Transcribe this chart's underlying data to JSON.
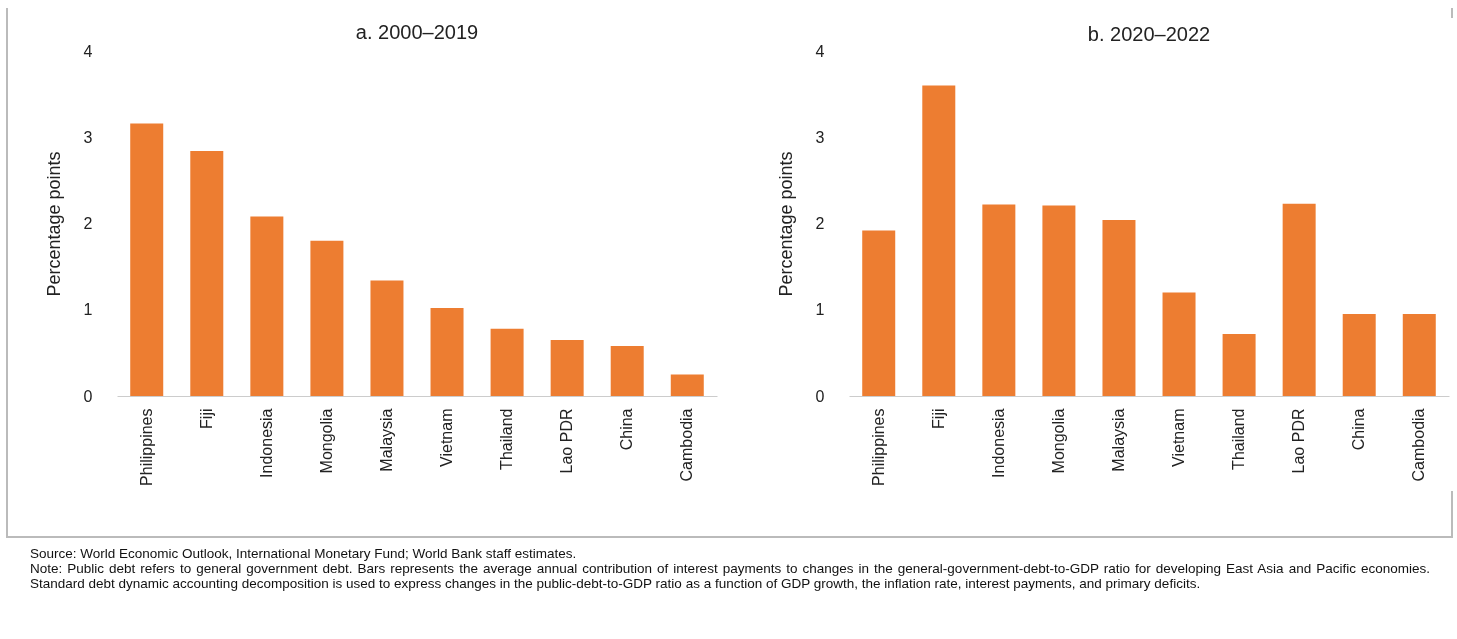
{
  "chart_data": [
    {
      "type": "bar",
      "title": "a. 2000–2019",
      "ylabel": "Percentage points",
      "categories": [
        "Philippines",
        "Fiji",
        "Indonesia",
        "Mongolia",
        "Malaysia",
        "Vietnam",
        "Thailand",
        "Lao PDR",
        "China",
        "Cambodia"
      ],
      "values": [
        3.16,
        2.84,
        2.08,
        1.8,
        1.34,
        1.02,
        0.78,
        0.65,
        0.58,
        0.25
      ],
      "color": "#ed7d31",
      "ylim": [
        0,
        4
      ],
      "yticks": [
        0,
        1,
        2,
        3,
        4
      ],
      "grid": false,
      "annotations": [
        "Source: World Economic Outlook, International Monetary Fund; World Bank staff estimates.",
        "Note: Public debt refers to general government debt. Bars represents the average annual contribution of interest payments to changes in the general-government-debt-to-GDP ratio for developing East Asia and Pacific economies. Standard debt dynamic accounting decomposition is used to express changes in the public-debt-to-GDP ratio as a function of GDP growth, the inflation rate, interest payments, and primary deficits."
      ]
    },
    {
      "type": "bar",
      "title": "b. 2020–2022",
      "ylabel": "Percentage points",
      "categories": [
        "Philippines",
        "Fiji",
        "Indonesia",
        "Mongolia",
        "Malaysia",
        "Vietnam",
        "Thailand",
        "Lao PDR",
        "China",
        "Cambodia"
      ],
      "values": [
        1.92,
        3.6,
        2.22,
        2.21,
        2.04,
        1.2,
        0.72,
        2.23,
        0.95,
        0.95
      ],
      "color": "#ed7d31",
      "ylim": [
        0,
        4
      ],
      "yticks": [
        0,
        1,
        2,
        3,
        4
      ],
      "grid": false
    }
  ]
}
